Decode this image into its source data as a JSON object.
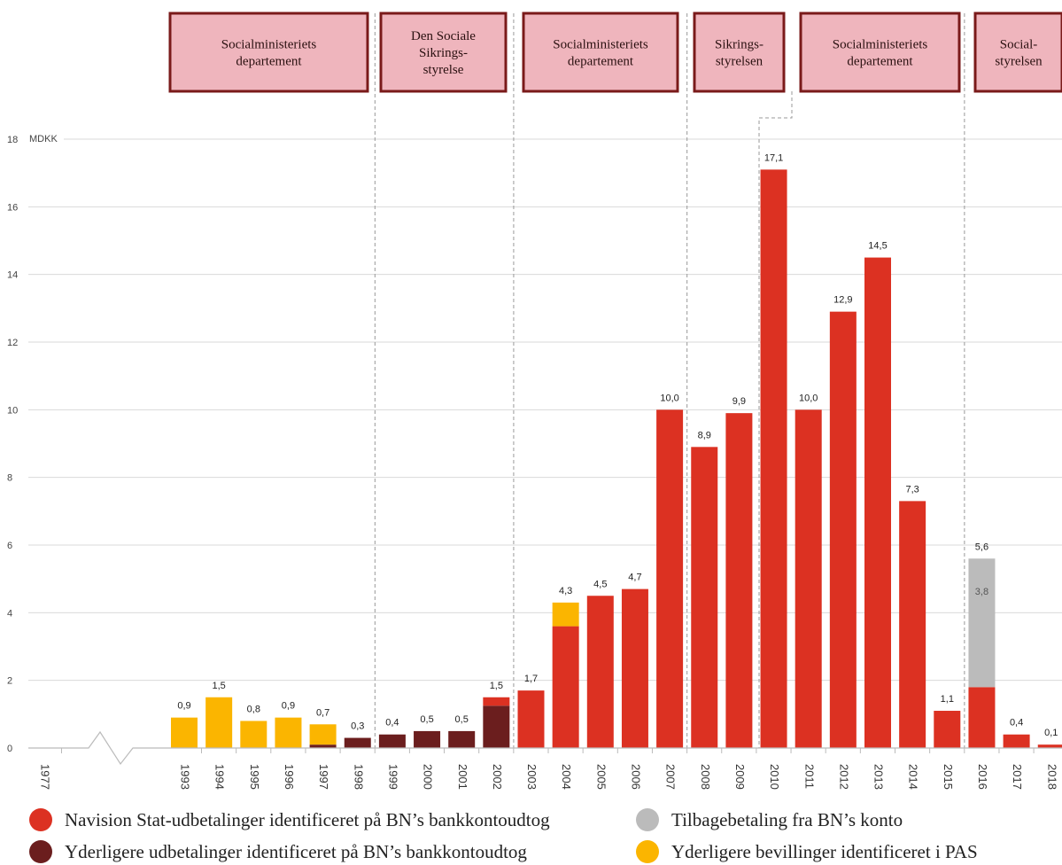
{
  "chart_data": {
    "type": "bar",
    "stacked": true,
    "unit": "MDKK",
    "ylim": [
      0,
      18
    ],
    "y_ticks": [
      0,
      2,
      4,
      6,
      8,
      10,
      12,
      14,
      16,
      18
    ],
    "y_tick_labels": [
      "0",
      "2",
      "4",
      "6",
      "8",
      "10",
      "12",
      "14",
      "16",
      "18"
    ],
    "grid": true,
    "axis_break_between": [
      "1977",
      "1993"
    ],
    "categories": [
      "1977",
      "1993",
      "1994",
      "1995",
      "1996",
      "1997",
      "1998",
      "1999",
      "2000",
      "2001",
      "2002",
      "2003",
      "2004",
      "2005",
      "2006",
      "2007",
      "2008",
      "2009",
      "2010",
      "2011",
      "2012",
      "2013",
      "2014",
      "2015",
      "2016",
      "2017",
      "2018"
    ],
    "series": [
      {
        "name": "Navision Stat-udbetalinger identificeret på BN’s bankkontoudtog",
        "color": "#dc3122",
        "values": [
          0,
          0,
          0,
          0,
          0,
          0,
          0,
          0,
          0,
          0,
          0.25,
          1.7,
          3.6,
          4.5,
          4.7,
          10.0,
          8.9,
          9.9,
          17.1,
          10.0,
          12.9,
          14.5,
          7.3,
          1.1,
          1.8,
          0.4,
          0.1
        ]
      },
      {
        "name": "Yderligere udbetalinger identificeret på BN’s bankkontoudtog",
        "color": "#6b1e1e",
        "values": [
          0,
          0,
          0,
          0,
          0,
          0.1,
          0.3,
          0.4,
          0.5,
          0.5,
          1.25,
          0,
          0,
          0,
          0,
          0,
          0,
          0,
          0,
          0,
          0,
          0,
          0,
          0,
          0,
          0,
          0
        ]
      },
      {
        "name": "Tilbagebetaling fra BN’s konto",
        "color": "#bbbbbb",
        "values": [
          0,
          0,
          0,
          0,
          0,
          0,
          0,
          0,
          0,
          0,
          0,
          0,
          0,
          0,
          0,
          0,
          0,
          0,
          0,
          0,
          0,
          0,
          0,
          0,
          3.8,
          0,
          0
        ]
      },
      {
        "name": "Yderligere bevillinger identificeret i PAS",
        "color": "#fbb500",
        "values": [
          0,
          0.9,
          1.5,
          0.8,
          0.9,
          0.6,
          0,
          0,
          0,
          0,
          0,
          0,
          0.7,
          0,
          0,
          0,
          0,
          0,
          0,
          0,
          0,
          0,
          0,
          0,
          0,
          0,
          0
        ]
      }
    ],
    "total_labels": [
      "",
      "0,9",
      "1,5",
      "0,8",
      "0,9",
      "0,7",
      "0,3",
      "0,4",
      "0,5",
      "0,5",
      "1,5",
      "1,7",
      "4,3",
      "4,5",
      "4,7",
      "10,0",
      "8,9",
      "9,9",
      "17,1",
      "10,0",
      "12,9",
      "14,5",
      "7,3",
      "1,1",
      "5,6",
      "0,4",
      "0,1"
    ],
    "inner_labels": [
      {
        "category": "2016",
        "series": "Tilbagebetaling fra BN’s konto",
        "text": "3,8"
      }
    ],
    "period_boxes": [
      {
        "label": "Socialministeriets\ndepartement",
        "from": "1993",
        "to": "1998"
      },
      {
        "label": "Den Sociale\nSikrings-\nstyrelse",
        "from": "1999",
        "to": "2002"
      },
      {
        "label": "Socialministeriets\ndepartement",
        "from": "2003",
        "to": "2007"
      },
      {
        "label": "Sikrings-\nstyrelsen",
        "from": "2008",
        "to": "2009"
      },
      {
        "label": "Socialministeriets\ndepartement",
        "from": "2010",
        "to": "2015"
      },
      {
        "label": "Social-\nstyrelsen",
        "from": "2016",
        "to": "2018"
      }
    ],
    "colors": {
      "box_fill": "#efb5bd",
      "box_border": "#7a1a1a",
      "grid": "#d9d9d9",
      "divider": "#999999"
    }
  }
}
